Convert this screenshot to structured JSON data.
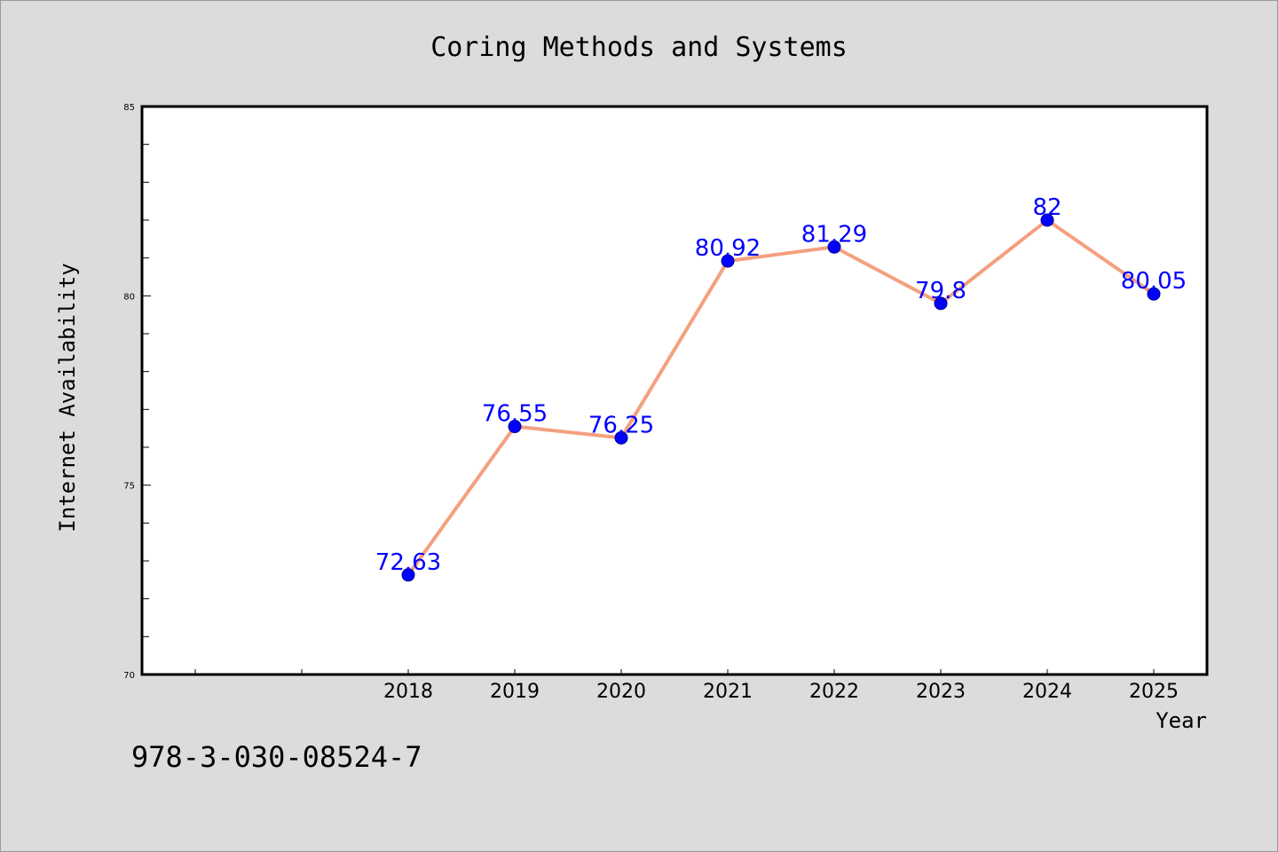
{
  "chart_data": {
    "type": "line",
    "title": "Coring Methods and Systems",
    "xlabel": "Year",
    "ylabel": "Internet Availability",
    "categories": [
      "2018",
      "2019",
      "2020",
      "2021",
      "2022",
      "2023",
      "2024",
      "2025"
    ],
    "values": [
      72.63,
      76.55,
      76.25,
      80.92,
      81.29,
      79.8,
      82,
      80.05
    ],
    "value_labels": [
      "72.63",
      "76.55",
      "76.25",
      "80.92",
      "81.29",
      "79.8",
      "82",
      "80.05"
    ],
    "ylim": [
      70,
      85
    ],
    "yticks": [
      "70",
      "75",
      "80",
      "85"
    ],
    "grid": false,
    "legend": "none",
    "colors": {
      "line": "#f4a07f",
      "marker": "#0000ff",
      "label": "#0000ff",
      "background": "#dcdcdc",
      "plot_background": "#ffffff"
    }
  },
  "footer": {
    "isbn": "978-3-030-08524-7"
  }
}
